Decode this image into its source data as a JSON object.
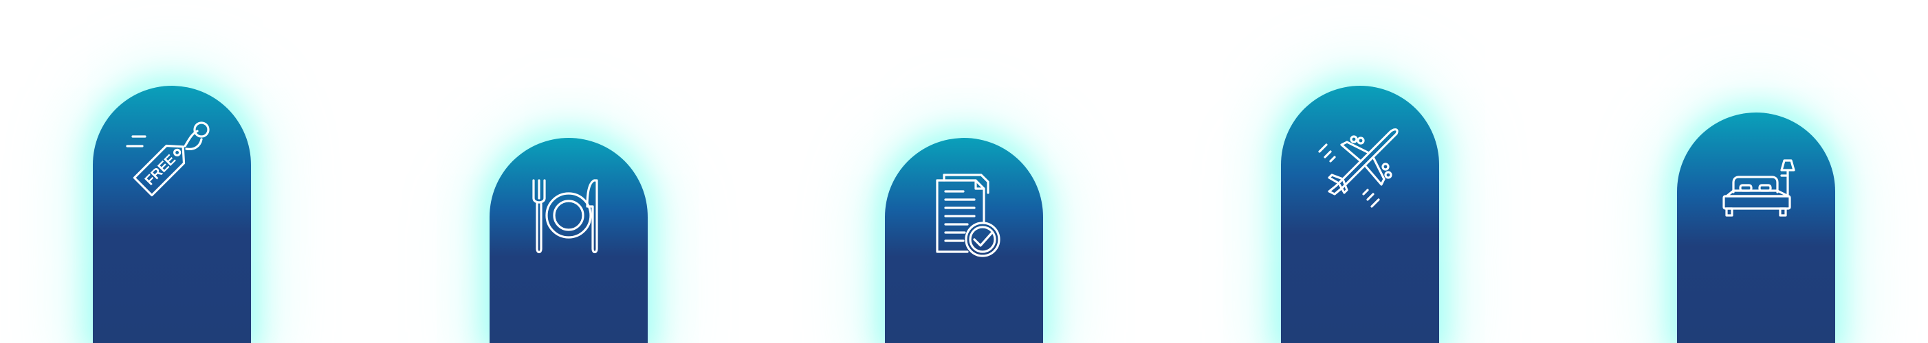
{
  "colors": {
    "background": "#ffffff",
    "pillar_top": "#0aa0ba",
    "pillar_mid": "#1560a3",
    "pillar_bottom": "#1f3e78",
    "glow": "#78ffee",
    "icon_stroke": "#ffffff"
  },
  "pillars": [
    {
      "icon": "free-tag-icon",
      "tag_text": "FREE"
    },
    {
      "icon": "dining-plate-icon"
    },
    {
      "icon": "document-check-icon"
    },
    {
      "icon": "airplane-icon"
    },
    {
      "icon": "hotel-bed-icon"
    }
  ]
}
